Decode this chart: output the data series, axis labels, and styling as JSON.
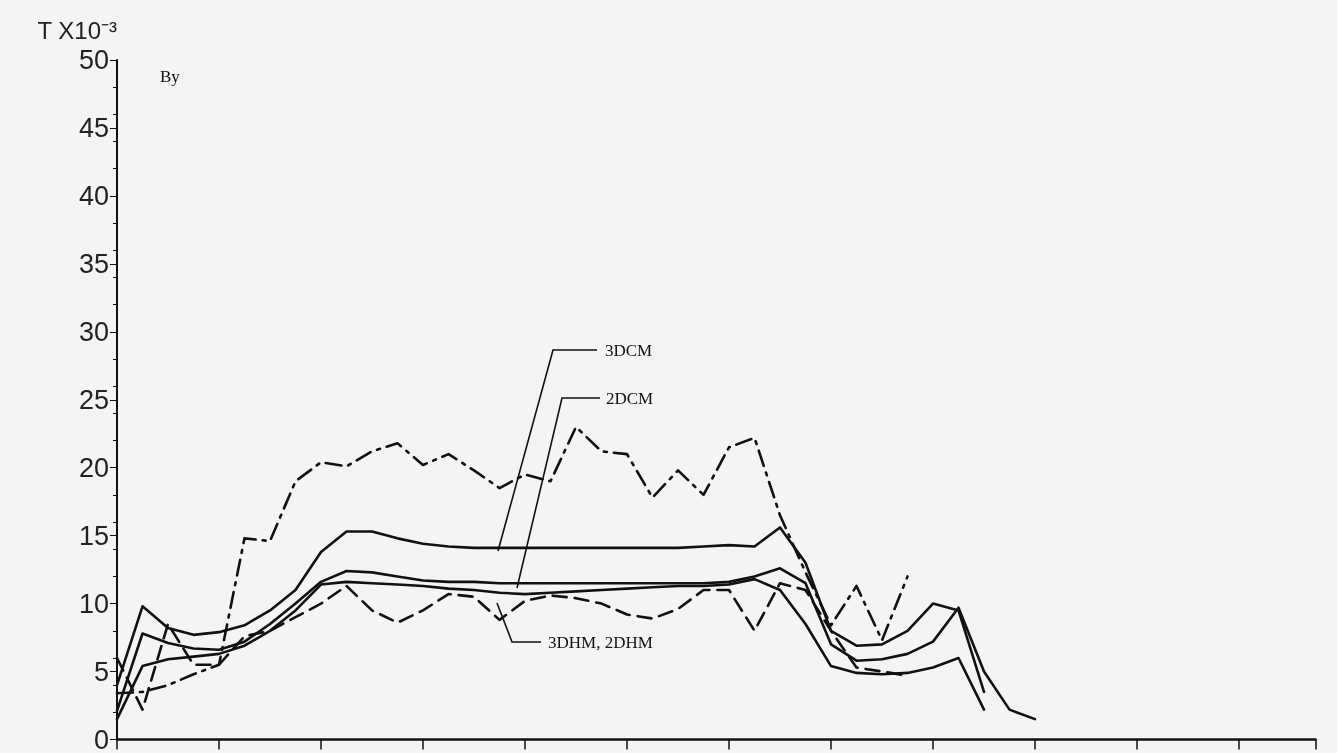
{
  "chart_data": {
    "type": "line",
    "ylabel": "T X10⁻³",
    "annotations": [
      "By"
    ],
    "categories": [
      null,
      null,
      null,
      null,
      null,
      null,
      null,
      null,
      null,
      null,
      null,
      null,
      null,
      null,
      null,
      null,
      null,
      null,
      null,
      null,
      null,
      null,
      null,
      null,
      null,
      null,
      null,
      null,
      null,
      null,
      null,
      null,
      null,
      null,
      null,
      null,
      null,
      null,
      null,
      null,
      null,
      null,
      null,
      null,
      null,
      null,
      null,
      null
    ],
    "ylim": [
      0,
      50
    ],
    "yticks": [
      0,
      5,
      10,
      15,
      20,
      25,
      30,
      35,
      40,
      45,
      50
    ],
    "tick_labels": "y",
    "marker": "none",
    "series": [
      {
        "color": "#111111",
        "line_style": "dashdot",
        "values": [
          3.4,
          3.5,
          4.0,
          4.8,
          5.5,
          14.8,
          14.6,
          19.0,
          20.4,
          20.1,
          21.2,
          21.8,
          20.2,
          21.0,
          19.8,
          18.5,
          19.5,
          19.0,
          23.0,
          21.2,
          21.0,
          17.8,
          19.8,
          18.0,
          21.5,
          22.2,
          16.5,
          12.3,
          8.4,
          11.3,
          7.3,
          12.0,
          null,
          null,
          null,
          null,
          null,
          null,
          null,
          null,
          null,
          null,
          null,
          null,
          null,
          null,
          null,
          null
        ]
      },
      {
        "color": "#111111",
        "line_style": "dashed",
        "values": [
          6.0,
          2.2,
          8.5,
          5.5,
          5.5,
          7.6,
          8.0,
          9.0,
          10.0,
          11.3,
          9.5,
          8.6,
          9.5,
          10.7,
          10.5,
          8.8,
          10.2,
          10.6,
          10.4,
          10.0,
          9.2,
          8.9,
          9.6,
          11.0,
          11.0,
          8.0,
          11.5,
          11.0,
          8.0,
          5.3,
          5.0,
          4.7,
          null,
          null,
          null,
          null,
          null,
          null,
          null,
          null,
          null,
          null,
          null,
          null,
          null,
          null,
          null,
          null
        ]
      },
      {
        "name": "3DCM",
        "color": "#111111",
        "line_style": "solid",
        "values": [
          4.0,
          9.8,
          8.2,
          7.7,
          7.9,
          8.4,
          9.5,
          11.0,
          13.8,
          15.3,
          15.3,
          14.8,
          14.4,
          14.2,
          14.1,
          14.1,
          14.1,
          14.1,
          14.1,
          14.1,
          14.1,
          14.1,
          14.1,
          14.2,
          14.3,
          14.2,
          15.6,
          13.0,
          8.0,
          6.9,
          7.0,
          8.0,
          10.0,
          9.5,
          3.5,
          null,
          null,
          null,
          null,
          null,
          null,
          null,
          null,
          null,
          null,
          null,
          null,
          null
        ]
      },
      {
        "name": "2DCM",
        "color": "#111111",
        "line_style": "solid",
        "values": [
          2.1,
          7.8,
          7.1,
          6.7,
          6.6,
          7.2,
          8.5,
          10.0,
          11.6,
          12.4,
          12.3,
          12.0,
          11.7,
          11.6,
          11.6,
          11.5,
          11.5,
          11.5,
          11.5,
          11.5,
          11.5,
          11.5,
          11.5,
          11.5,
          11.6,
          12.0,
          12.6,
          11.5,
          7.0,
          5.8,
          5.9,
          6.3,
          7.2,
          9.7,
          5.0,
          2.2,
          1.5,
          null,
          null,
          null,
          null,
          null,
          null,
          null,
          null,
          null,
          null,
          null
        ]
      },
      {
        "name": "3DHM, 2DHM",
        "color": "#111111",
        "line_style": "solid",
        "values": [
          1.5,
          5.4,
          5.9,
          6.1,
          6.3,
          6.9,
          8.0,
          9.5,
          11.4,
          11.6,
          11.5,
          11.4,
          11.3,
          11.1,
          11.0,
          10.8,
          10.7,
          10.8,
          10.9,
          11.0,
          11.1,
          11.2,
          11.3,
          11.3,
          11.4,
          11.8,
          11.0,
          8.5,
          5.4,
          4.9,
          4.8,
          4.9,
          5.3,
          6.0,
          2.2,
          null,
          null,
          null,
          null,
          null,
          null,
          null,
          null,
          null,
          null,
          null,
          null,
          null
        ]
      }
    ]
  }
}
